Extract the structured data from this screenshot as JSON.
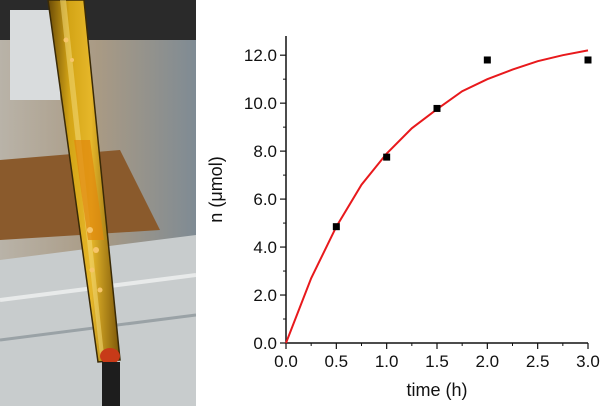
{
  "chart_data": {
    "type": "scatter",
    "xlabel": "time (h)",
    "ylabel": "n (μmol)",
    "xlim": [
      0,
      3.0
    ],
    "ylim": [
      0,
      12.8
    ],
    "x_ticks": [
      "0.0",
      "0.5",
      "1.0",
      "1.5",
      "2.0",
      "2.5",
      "3.0"
    ],
    "y_ticks": [
      "0.0",
      "2.0",
      "4.0",
      "6.0",
      "8.0",
      "10.0",
      "12.0"
    ],
    "grid": false,
    "series": [
      {
        "kind": "scatter",
        "marker": "square",
        "color": "#000000",
        "points": [
          [
            0.5,
            4.85
          ],
          [
            1.0,
            7.75
          ],
          [
            1.5,
            9.78
          ],
          [
            2.0,
            11.8
          ],
          [
            3.0,
            11.8
          ]
        ]
      },
      {
        "kind": "fit-line",
        "color": "#e8191c",
        "points": [
          [
            0,
            0
          ],
          [
            0.25,
            2.7
          ],
          [
            0.5,
            4.85
          ],
          [
            0.75,
            6.6
          ],
          [
            1.0,
            7.9
          ],
          [
            1.25,
            8.95
          ],
          [
            1.5,
            9.75
          ],
          [
            1.75,
            10.5
          ],
          [
            2.0,
            11.0
          ],
          [
            2.25,
            11.4
          ],
          [
            2.5,
            11.75
          ],
          [
            2.75,
            12.0
          ],
          [
            3.0,
            12.2
          ]
        ]
      }
    ]
  },
  "photo": {
    "description_icon": "photo-of-glass-tube"
  }
}
